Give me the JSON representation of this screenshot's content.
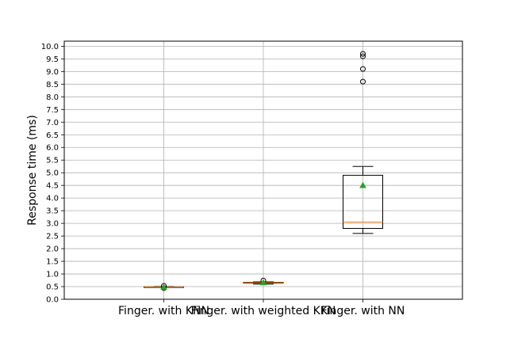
{
  "chart_data": {
    "type": "box",
    "ylabel": "Response time (ms)",
    "xlabel": "",
    "ylim": [
      0,
      10.2
    ],
    "yticks": [
      0.0,
      0.5,
      1.0,
      1.5,
      2.0,
      2.5,
      3.0,
      3.5,
      4.0,
      4.5,
      5.0,
      5.5,
      6.0,
      6.5,
      7.0,
      7.5,
      8.0,
      8.5,
      9.0,
      9.5,
      10.0
    ],
    "ytick_labels": [
      "0.0",
      "0.5",
      "1.0",
      "1.5",
      "2.0",
      "2.5",
      "3.0",
      "3.5",
      "4.0",
      "4.5",
      "5.0",
      "5.5",
      "6.0",
      "6.5",
      "7.0",
      "7.5",
      "8.0",
      "8.5",
      "9.0",
      "9.5",
      "10.0"
    ],
    "grid": true,
    "categories": [
      "Finger. with KNN",
      "Finger. with weighted KKN",
      "Finger. with NN"
    ],
    "boxes": [
      {
        "whisker_low": 0.47,
        "q1": 0.47,
        "median": 0.48,
        "q3": 0.49,
        "whisker_high": 0.5,
        "mean": 0.48,
        "outliers": [
          0.53,
          0.44
        ]
      },
      {
        "whisker_low": 0.6,
        "q1": 0.64,
        "median": 0.66,
        "q3": 0.67,
        "whisker_high": 0.69,
        "mean": 0.66,
        "outliers": [
          0.74
        ]
      },
      {
        "whisker_low": 2.6,
        "q1": 2.8,
        "median": 3.05,
        "q3": 4.9,
        "whisker_high": 5.25,
        "mean": 4.5,
        "outliers": [
          8.6,
          9.1,
          9.6,
          9.7
        ]
      }
    ],
    "colors": {
      "box": "#000000",
      "median": "#ff7f0e",
      "mean": "#2ca02c",
      "grid": "#b0b0b0"
    }
  }
}
